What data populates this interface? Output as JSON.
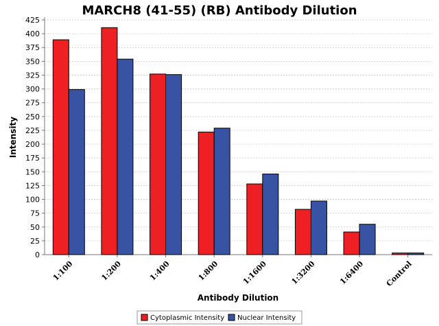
{
  "chart_data": {
    "type": "bar",
    "title": "MARCH8 (41-55) (RB) Antibody Dilution",
    "xlabel": "Antibody Dilution",
    "ylabel": "Intensity",
    "categories": [
      "1:100",
      "1:200",
      "1:400",
      "1:800",
      "1:1600",
      "1:3200",
      "1:6400",
      "Control"
    ],
    "series": [
      {
        "name": "Cytoplasmic Intensity",
        "color": "#ee2024",
        "values": [
          389,
          411,
          327,
          222,
          128,
          82,
          41,
          3
        ]
      },
      {
        "name": "Nuclear Intensity",
        "color": "#3953a4",
        "values": [
          299,
          354,
          326,
          229,
          146,
          97,
          55,
          3
        ]
      }
    ],
    "ylim": [
      0,
      425
    ],
    "yticks": [
      0,
      25,
      50,
      75,
      100,
      125,
      150,
      175,
      200,
      225,
      250,
      275,
      300,
      325,
      350,
      375,
      400,
      425
    ],
    "grid": true,
    "legend_position": "bottom-center"
  }
}
